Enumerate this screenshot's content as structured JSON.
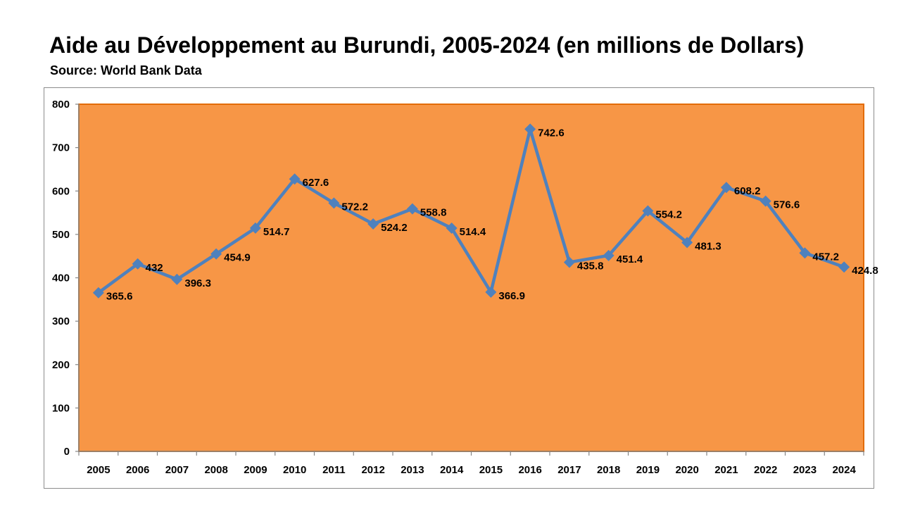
{
  "header": {
    "title": "Aide au Développement au Burundi, 2005-2024 (en millions de Dollars)",
    "subtitle": "Source: World Bank Data"
  },
  "chart_data": {
    "type": "line",
    "categories": [
      "2005",
      "2006",
      "2007",
      "2008",
      "2009",
      "2010",
      "2011",
      "2012",
      "2013",
      "2014",
      "2015",
      "2016",
      "2017",
      "2018",
      "2019",
      "2020",
      "2021",
      "2022",
      "2023",
      "2024"
    ],
    "series": [
      {
        "values": [
          365.6,
          432,
          396.3,
          454.9,
          514.7,
          627.6,
          572.2,
          524.2,
          558.8,
          514.4,
          366.9,
          742.6,
          435.8,
          451.4,
          554.2,
          481.3,
          608.2,
          576.6,
          457.2,
          424.8
        ],
        "color": "#4f81bd",
        "marker": "diamond"
      }
    ],
    "data_labels": [
      "365.6",
      "432",
      "396.3",
      "454.9",
      "514.7",
      "627.6",
      "572.2",
      "524.2",
      "558.8",
      "514.4",
      "366.9",
      "742.6",
      "435.8",
      "451.4",
      "554.2",
      "481.3",
      "608.2",
      "576.6",
      "457.2",
      "424.8"
    ],
    "ylim": [
      0,
      800
    ],
    "yticks": [
      "0",
      "100",
      "200",
      "300",
      "400",
      "500",
      "600",
      "700",
      "800"
    ],
    "xlabel": "",
    "ylabel": "",
    "grid": false,
    "legend": false,
    "plot_background": "#f79646",
    "plot_border": "#e36c09"
  }
}
